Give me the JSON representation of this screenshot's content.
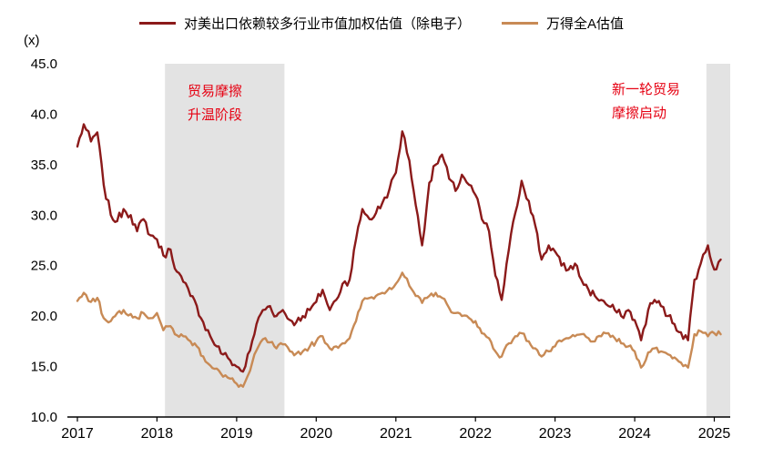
{
  "unit_label": "(x)",
  "legend": [
    {
      "label": "对美出口依赖较多行业市值加权估值（除电子）",
      "color": "#8B1A1A"
    },
    {
      "label": "万得全A估值",
      "color": "#C88A55"
    }
  ],
  "annotations": [
    {
      "text": "贸易摩擦\n升温阶段",
      "color": "#E60012"
    },
    {
      "text": "新一轮贸易\n摩擦启动",
      "color": "#E60012"
    }
  ],
  "chart_data": {
    "type": "line",
    "title": "",
    "xlabel": "",
    "ylabel": "(x)",
    "ylim": [
      10,
      45
    ],
    "xlim": [
      2017,
      2025.2
    ],
    "grid": false,
    "legend_position": "top",
    "background": "#ffffff",
    "style": {
      "region_fill": "#E3E3E3",
      "axis_color": "#000000",
      "line_width": 2.4
    },
    "yticks": [
      {
        "value": 45,
        "label": "45.0"
      },
      {
        "value": 40,
        "label": "40.0"
      },
      {
        "value": 35,
        "label": "35.0"
      },
      {
        "value": 30,
        "label": "30.0"
      },
      {
        "value": 25,
        "label": "25.0"
      },
      {
        "value": 20,
        "label": "20.0"
      },
      {
        "value": 15,
        "label": "15.0"
      },
      {
        "value": 10,
        "label": "10.0"
      }
    ],
    "xticks": [
      {
        "value": 2017,
        "label": "2017"
      },
      {
        "value": 2018,
        "label": "2018"
      },
      {
        "value": 2019,
        "label": "2019"
      },
      {
        "value": 2020,
        "label": "2020"
      },
      {
        "value": 2021,
        "label": "2021"
      },
      {
        "value": 2022,
        "label": "2022"
      },
      {
        "value": 2023,
        "label": "2023"
      },
      {
        "value": 2024,
        "label": "2024"
      },
      {
        "value": 2025,
        "label": "2025"
      }
    ],
    "regions": [
      {
        "x0": 2018.1,
        "x1": 2019.6,
        "label": "贸易摩擦升温阶段"
      },
      {
        "x0": 2024.9,
        "x1": 2025.2,
        "label": "新一轮贸易摩擦启动"
      }
    ],
    "x": [
      2017.0,
      2017.08,
      2017.17,
      2017.25,
      2017.33,
      2017.42,
      2017.5,
      2017.58,
      2017.67,
      2017.75,
      2017.83,
      2017.92,
      2018.0,
      2018.08,
      2018.17,
      2018.25,
      2018.33,
      2018.42,
      2018.5,
      2018.58,
      2018.67,
      2018.75,
      2018.83,
      2018.92,
      2019.0,
      2019.08,
      2019.17,
      2019.25,
      2019.33,
      2019.42,
      2019.5,
      2019.58,
      2019.67,
      2019.75,
      2019.83,
      2019.92,
      2020.0,
      2020.08,
      2020.17,
      2020.25,
      2020.33,
      2020.42,
      2020.5,
      2020.58,
      2020.67,
      2020.75,
      2020.83,
      2020.92,
      2021.0,
      2021.08,
      2021.17,
      2021.25,
      2021.33,
      2021.42,
      2021.5,
      2021.58,
      2021.67,
      2021.75,
      2021.83,
      2021.92,
      2022.0,
      2022.08,
      2022.17,
      2022.25,
      2022.33,
      2022.42,
      2022.5,
      2022.58,
      2022.67,
      2022.75,
      2022.83,
      2022.92,
      2023.0,
      2023.08,
      2023.17,
      2023.25,
      2023.33,
      2023.42,
      2023.5,
      2023.58,
      2023.67,
      2023.75,
      2023.83,
      2023.92,
      2024.0,
      2024.08,
      2024.17,
      2024.25,
      2024.33,
      2024.42,
      2024.5,
      2024.58,
      2024.67,
      2024.75,
      2024.83,
      2024.92,
      2025.0,
      2025.08
    ],
    "series": [
      {
        "name": "对美出口依赖较多行业市值加权估值（除电子）",
        "color": "#8B1A1A",
        "values": [
          36.8,
          39.0,
          37.3,
          38.2,
          33.0,
          30.0,
          29.4,
          30.6,
          30.0,
          28.4,
          29.6,
          28.0,
          27.6,
          26.0,
          26.6,
          24.4,
          23.4,
          22.0,
          21.0,
          19.4,
          18.0,
          17.0,
          16.2,
          15.6,
          15.0,
          14.5,
          16.6,
          19.2,
          20.6,
          21.0,
          20.0,
          20.6,
          19.6,
          19.4,
          20.0,
          20.6,
          21.4,
          22.6,
          20.6,
          21.6,
          23.2,
          23.6,
          27.6,
          30.6,
          29.6,
          30.2,
          31.2,
          32.6,
          34.2,
          38.3,
          35.4,
          31.0,
          27.0,
          33.2,
          35.0,
          36.0,
          33.6,
          32.4,
          34.0,
          33.0,
          32.0,
          29.6,
          28.4,
          24.0,
          21.6,
          26.6,
          30.2,
          33.4,
          31.4,
          29.0,
          25.6,
          27.0,
          26.4,
          25.0,
          24.6,
          25.2,
          23.6,
          22.6,
          22.0,
          21.6,
          21.0,
          20.6,
          20.0,
          20.6,
          19.6,
          17.6,
          20.6,
          21.6,
          21.0,
          20.0,
          19.2,
          18.4,
          17.6,
          23.6,
          25.2,
          27.0,
          24.6,
          25.6
        ]
      },
      {
        "name": "万得全A估值",
        "color": "#C88A55",
        "values": [
          21.5,
          22.3,
          21.4,
          21.8,
          19.8,
          19.5,
          20.3,
          20.6,
          20.2,
          19.8,
          20.3,
          19.8,
          20.3,
          18.6,
          19.0,
          18.1,
          18.0,
          17.5,
          17.0,
          16.0,
          15.1,
          14.8,
          14.0,
          13.8,
          13.3,
          13.0,
          14.6,
          16.6,
          17.7,
          17.4,
          16.8,
          17.2,
          16.5,
          16.3,
          16.5,
          17.0,
          17.5,
          18.0,
          16.8,
          17.0,
          17.3,
          17.8,
          19.5,
          21.5,
          21.8,
          22.0,
          22.3,
          22.8,
          23.2,
          24.3,
          23.0,
          22.0,
          21.3,
          22.0,
          22.3,
          21.8,
          20.8,
          20.3,
          20.0,
          19.8,
          19.5,
          18.3,
          17.8,
          16.5,
          16.0,
          17.3,
          18.0,
          18.3,
          17.5,
          16.8,
          16.0,
          16.5,
          17.0,
          17.5,
          17.8,
          18.0,
          18.2,
          17.8,
          17.5,
          18.0,
          18.3,
          17.8,
          17.3,
          17.0,
          16.5,
          14.9,
          16.4,
          16.8,
          16.5,
          16.2,
          15.9,
          15.4,
          14.9,
          18.2,
          18.5,
          18.0,
          18.3,
          18.2
        ]
      }
    ]
  }
}
